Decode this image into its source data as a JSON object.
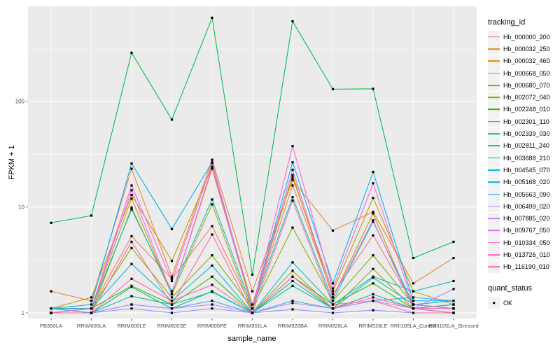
{
  "chart_data": {
    "type": "line",
    "title": "",
    "xlabel": "sample_name",
    "ylabel": "FPKM + 1",
    "y_scale": "log10",
    "ylim": [
      0.9,
      790
    ],
    "grid": true,
    "legend_position": "right",
    "y_ticks": [
      "1",
      "10",
      "100"
    ],
    "y_minor_breaks": [
      3.1623,
      31.623,
      316.23
    ],
    "categories": [
      "PB350LA",
      "RRIM600LA",
      "RRIM600LE",
      "RRIM600SE",
      "RRIM600PE",
      "RRIM901LA",
      "RRIM928BA",
      "RRIM928LA",
      "RRIM928LE",
      "RRII105LA_Control",
      "RRII105LA_Stressed"
    ],
    "series": [
      {
        "name": "Hb_000000_200",
        "color": "#F8766D",
        "values": [
          1.1,
          1.1,
          5.3,
          2.1,
          6.6,
          1.1,
          16,
          1.5,
          5.4,
          1.2,
          1.1
        ]
      },
      {
        "name": "Hb_000032_250",
        "color": "#EA8331",
        "values": [
          1.6,
          1.3,
          23,
          2.2,
          28,
          1.6,
          18,
          6.0,
          9.0,
          1.9,
          3.3
        ]
      },
      {
        "name": "Hb_000032_460",
        "color": "#D89000",
        "values": [
          1.0,
          1.1,
          12,
          1.5,
          23,
          1.1,
          20,
          1.4,
          8.7,
          1.1,
          1.2
        ]
      },
      {
        "name": "Hb_000668_050",
        "color": "#C09B00",
        "values": [
          1.1,
          1.4,
          13,
          3.1,
          24,
          1.2,
          19,
          1.6,
          12.2,
          1.6,
          1.2
        ]
      },
      {
        "name": "Hb_000680_070",
        "color": "#A3A500",
        "values": [
          1.0,
          1.0,
          9.9,
          1.5,
          10.6,
          1.0,
          2.5,
          1.1,
          2.6,
          1.1,
          1.1
        ]
      },
      {
        "name": "Hb_002072_040",
        "color": "#7CAE00",
        "values": [
          1.0,
          1.1,
          4.1,
          1.4,
          3.5,
          1.1,
          6.4,
          1.3,
          3.5,
          1.2,
          1.1
        ]
      },
      {
        "name": "Hb_002248_010",
        "color": "#39B600",
        "values": [
          1.1,
          1.1,
          1.8,
          1.2,
          2.2,
          1.0,
          2.2,
          1.2,
          1.9,
          1.1,
          1.0
        ]
      },
      {
        "name": "Hb_002301_110",
        "color": "#00BB4E",
        "values": [
          7.1,
          8.3,
          287,
          67,
          615,
          2.3,
          569,
          130,
          131,
          3.3,
          4.7
        ]
      },
      {
        "name": "Hb_002339_030",
        "color": "#00BF7D",
        "values": [
          1.0,
          1.0,
          1.76,
          1.1,
          1.6,
          1.0,
          2.0,
          1.1,
          1.5,
          1.1,
          1.2
        ]
      },
      {
        "name": "Hb_002811_240",
        "color": "#00C1A3",
        "values": [
          1.1,
          1.0,
          1.44,
          1.2,
          1.58,
          1.0,
          1.8,
          1.1,
          2.15,
          1.2,
          1.3
        ]
      },
      {
        "name": "Hb_003688_210",
        "color": "#00BFC4",
        "values": [
          1.0,
          1.1,
          9.5,
          1.6,
          11.8,
          1.1,
          12.4,
          1.3,
          7.3,
          1.2,
          1.1
        ]
      },
      {
        "name": "Hb_004545_070",
        "color": "#00BAE0",
        "values": [
          1.1,
          1.1,
          2.9,
          1.3,
          2.8,
          1.0,
          3.0,
          1.2,
          2.2,
          1.6,
          2.0
        ]
      },
      {
        "name": "Hb_005168_020",
        "color": "#00B0F6",
        "values": [
          1.1,
          1.2,
          25.8,
          6.2,
          26.5,
          1.1,
          26.5,
          1.9,
          21.5,
          1.3,
          1.3
        ]
      },
      {
        "name": "Hb_005663_090",
        "color": "#35A2FF",
        "values": [
          1.1,
          1.0,
          1.2,
          1.1,
          1.3,
          1.0,
          1.3,
          1.1,
          1.3,
          1.4,
          1.3
        ]
      },
      {
        "name": "Hb_006499_020",
        "color": "#9590FF",
        "values": [
          1.0,
          1.0,
          1.1,
          1.0,
          1.1,
          1.0,
          1.08,
          1.0,
          1.06,
          1.0,
          1.0
        ]
      },
      {
        "name": "Hb_007885_020",
        "color": "#C77CFF",
        "values": [
          1.0,
          1.0,
          1.2,
          1.1,
          1.2,
          1.0,
          1.24,
          1.1,
          1.3,
          1.1,
          1.68
        ]
      },
      {
        "name": "Hb_009767_050",
        "color": "#E76BF3",
        "values": [
          1.0,
          1.1,
          14.4,
          1.5,
          24,
          1.1,
          22.5,
          1.4,
          7.5,
          1.1,
          1.1
        ]
      },
      {
        "name": "Hb_010334_050",
        "color": "#FA62DB",
        "values": [
          1.0,
          1.1,
          16,
          2.0,
          26,
          1.1,
          37.7,
          1.7,
          16.8,
          1.2,
          1.1
        ]
      },
      {
        "name": "Hb_013726_010",
        "color": "#FF62BC",
        "values": [
          1.0,
          1.0,
          2.1,
          1.3,
          1.84,
          1.0,
          2.2,
          1.1,
          1.4,
          1.1,
          1.0
        ]
      },
      {
        "name": "Hb_116190_010",
        "color": "#FF6A98",
        "values": [
          1.0,
          1.0,
          4.7,
          1.2,
          5.5,
          1.0,
          11.5,
          1.2,
          1.3,
          1.0,
          1.0
        ]
      }
    ],
    "legend": {
      "title": "tracking_id"
    },
    "quant_legend": {
      "title": "quant_status",
      "items": [
        {
          "label": "OK",
          "marker": "black-square"
        }
      ]
    },
    "colors": {
      "panel_bg": "#EBEBEB",
      "grid": "#FFFFFF",
      "tick_text": "#4D4D4D",
      "tick_mark": "#333333",
      "point": "#000000",
      "legend_key_bg": "#F2F2F2"
    }
  }
}
